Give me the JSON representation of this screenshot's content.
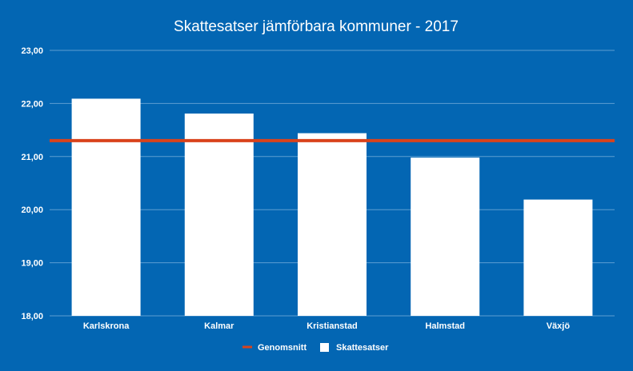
{
  "colors": {
    "background": "#0366b3",
    "bars": "#ffffff",
    "average_line": "#d9431c",
    "gridline": "#5d9dd2",
    "text": "#ffffff"
  },
  "chart_data": {
    "type": "bar",
    "title": "Skattesatser jämförbara kommuner - 2017",
    "xlabel": "",
    "ylabel": "",
    "categories": [
      "Karlskrona",
      "Kalmar",
      "Kristianstad",
      "Halmstad",
      "Växjö"
    ],
    "series": [
      {
        "name": "Skattesatser",
        "type": "bar",
        "values": [
          22.09,
          21.81,
          21.44,
          20.98,
          20.19
        ]
      },
      {
        "name": "Genomsnitt",
        "type": "line",
        "values": [
          21.3,
          21.3,
          21.3,
          21.3,
          21.3
        ]
      }
    ],
    "ylim": [
      18,
      23
    ],
    "yticks": [
      "18,00",
      "19,00",
      "20,00",
      "21,00",
      "22,00",
      "23,00"
    ],
    "grid": true,
    "legend_position": "bottom"
  }
}
